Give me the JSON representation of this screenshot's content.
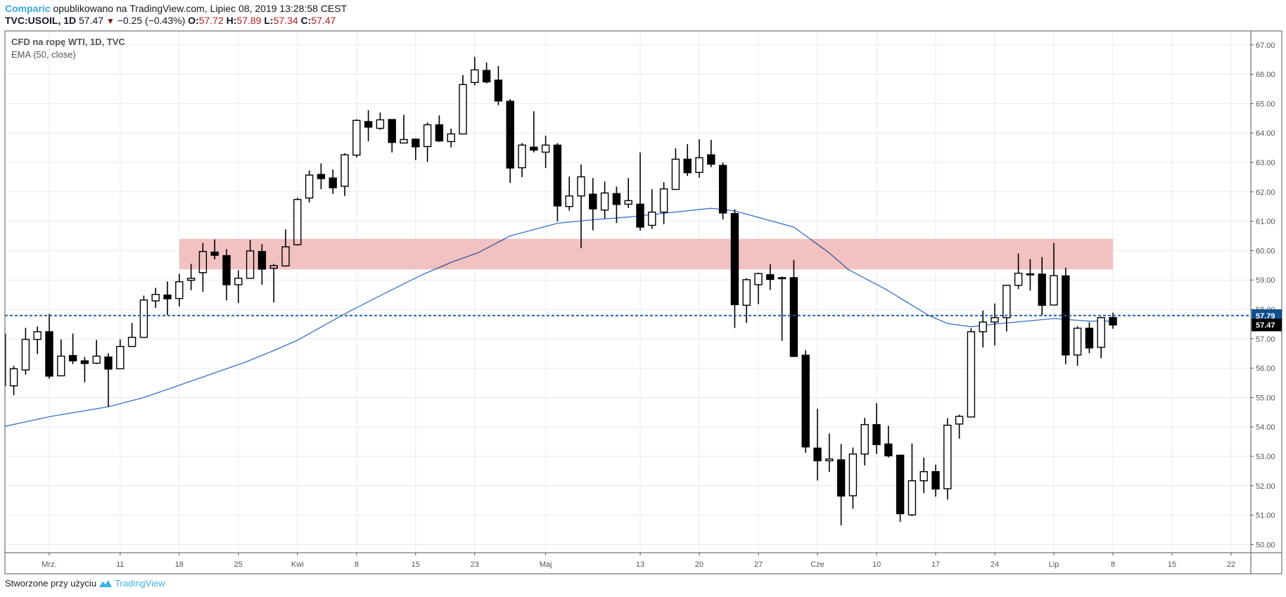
{
  "header": {
    "author": "Comparic",
    "published_text": "opublikowano na TradingView.com, Lipiec 08, 2019 13:28:58 CEST",
    "symbol": "TVC:USOIL, 1D",
    "last_price": "57.47",
    "change": "−0.25 (−0.43%)",
    "o_label": "O:",
    "o_value": "57.72",
    "h_label": "H:",
    "h_value": "57.89",
    "l_label": "L:",
    "l_value": "57.34",
    "c_label": "C:",
    "c_value": "57.47",
    "change_direction_icon": "down-triangle-icon"
  },
  "legend": {
    "series_title": "CFD na ropę WTI, 1D, TVC",
    "indicator": "EMA (50, close)"
  },
  "footer": {
    "text": "Stworzone przy użyciu",
    "brand": "TradingView"
  },
  "colors": {
    "bull_fill": "#ffffff",
    "bear_fill": "#000000",
    "ema": "#3a6fc4",
    "dashed_line": "#1f5ea8",
    "current_price_label": "#0f4f8f",
    "last_price_label": "#000000",
    "zone": "#f2c1c1",
    "grid": "#e3eaf1"
  },
  "chart_data": {
    "type": "candlestick",
    "title": "CFD na ropę WTI, 1D, TVC",
    "ylim": [
      50,
      67
    ],
    "y_ticks": [
      "67.00",
      "66.00",
      "65.00",
      "64.00",
      "63.00",
      "62.00",
      "61.00",
      "60.00",
      "59.00",
      "58.00",
      "57.00",
      "56.00",
      "55.00",
      "54.00",
      "53.00",
      "52.00",
      "51.00",
      "50.00"
    ],
    "x_ticks": [
      {
        "label": "Mrz.",
        "bar": 0
      },
      {
        "label": "11",
        "bar": 6
      },
      {
        "label": "18",
        "bar": 11
      },
      {
        "label": "25",
        "bar": 16
      },
      {
        "label": "Kwi",
        "bar": 21
      },
      {
        "label": "8",
        "bar": 26
      },
      {
        "label": "15",
        "bar": 31
      },
      {
        "label": "23",
        "bar": 36
      },
      {
        "label": "Maj",
        "bar": 42
      },
      {
        "label": "13",
        "bar": 50
      },
      {
        "label": "20",
        "bar": 55
      },
      {
        "label": "27",
        "bar": 60
      },
      {
        "label": "Cze",
        "bar": 65
      },
      {
        "label": "10",
        "bar": 70
      },
      {
        "label": "17",
        "bar": 75
      },
      {
        "label": "24",
        "bar": 80
      },
      {
        "label": "Lip",
        "bar": 85
      },
      {
        "label": "8",
        "bar": 90
      },
      {
        "label": "15",
        "bar": 95
      },
      {
        "label": "22",
        "bar": 100
      }
    ],
    "first_bar": -4,
    "ohlc": [
      [
        57.16,
        57.3,
        55.3,
        55.4
      ],
      [
        55.4,
        56.08,
        55.08,
        55.98
      ],
      [
        55.94,
        57.37,
        55.78,
        56.98
      ],
      [
        56.98,
        57.42,
        56.48,
        57.24
      ],
      [
        57.24,
        57.85,
        55.64,
        55.73
      ],
      [
        55.74,
        56.98,
        55.73,
        56.41
      ],
      [
        56.43,
        57.18,
        56.14,
        56.25
      ],
      [
        56.25,
        56.38,
        55.52,
        56.16
      ],
      [
        56.17,
        56.96,
        56.14,
        56.41
      ],
      [
        56.38,
        56.51,
        54.69,
        55.97
      ],
      [
        55.98,
        56.98,
        55.97,
        56.74
      ],
      [
        56.74,
        57.54,
        56.73,
        57.05
      ],
      [
        57.05,
        58.47,
        57.04,
        58.32
      ],
      [
        58.29,
        58.73,
        58.05,
        58.51
      ],
      [
        58.49,
        58.95,
        57.81,
        58.36
      ],
      [
        58.37,
        59.21,
        58.1,
        58.94
      ],
      [
        58.99,
        59.55,
        58.65,
        59.06
      ],
      [
        59.25,
        60.26,
        58.6,
        59.97
      ],
      [
        59.95,
        60.38,
        59.7,
        59.84
      ],
      [
        59.83,
        60.05,
        58.31,
        58.84
      ],
      [
        58.84,
        59.33,
        58.22,
        59.06
      ],
      [
        59.06,
        60.36,
        59.05,
        59.99
      ],
      [
        59.97,
        60.22,
        58.84,
        59.37
      ],
      [
        59.4,
        59.55,
        58.24,
        59.49
      ],
      [
        59.48,
        60.72,
        59.46,
        60.13
      ],
      [
        60.2,
        61.8,
        60.17,
        61.74
      ],
      [
        61.79,
        62.73,
        61.64,
        62.57
      ],
      [
        62.59,
        62.97,
        62.09,
        62.45
      ],
      [
        62.47,
        62.76,
        61.93,
        62.14
      ],
      [
        62.19,
        63.31,
        61.86,
        63.26
      ],
      [
        63.25,
        64.47,
        63.17,
        64.43
      ],
      [
        64.39,
        64.78,
        63.72,
        64.2
      ],
      [
        64.16,
        64.7,
        64.11,
        64.45
      ],
      [
        64.46,
        64.47,
        63.34,
        63.68
      ],
      [
        63.66,
        64.62,
        63.65,
        63.78
      ],
      [
        63.79,
        63.82,
        63.08,
        63.53
      ],
      [
        63.54,
        64.36,
        63.02,
        64.28
      ],
      [
        64.28,
        64.6,
        63.7,
        63.73
      ],
      [
        63.71,
        64.15,
        63.51,
        63.97
      ],
      [
        63.97,
        65.97,
        63.96,
        65.65
      ],
      [
        65.72,
        66.59,
        65.62,
        66.15
      ],
      [
        66.13,
        66.4,
        65.69,
        65.74
      ],
      [
        65.8,
        66.28,
        64.95,
        65.09
      ],
      [
        65.08,
        65.15,
        62.3,
        62.81
      ],
      [
        62.82,
        63.66,
        62.5,
        63.59
      ],
      [
        63.52,
        64.74,
        63.34,
        63.42
      ],
      [
        63.35,
        63.91,
        62.81,
        63.59
      ],
      [
        63.59,
        63.66,
        60.99,
        61.52
      ],
      [
        61.5,
        62.52,
        61.36,
        61.86
      ],
      [
        61.86,
        62.93,
        60.08,
        62.51
      ],
      [
        61.92,
        62.47,
        60.69,
        61.42
      ],
      [
        61.38,
        62.35,
        61.09,
        61.96
      ],
      [
        61.94,
        62.18,
        60.94,
        61.57
      ],
      [
        61.58,
        62.47,
        61.45,
        61.7
      ],
      [
        61.58,
        63.34,
        60.68,
        60.8
      ],
      [
        60.86,
        62.09,
        60.74,
        61.31
      ],
      [
        61.31,
        62.33,
        60.9,
        62.1
      ],
      [
        62.08,
        63.48,
        62.07,
        63.11
      ],
      [
        63.11,
        63.62,
        62.54,
        62.65
      ],
      [
        62.66,
        63.79,
        62.48,
        63.16
      ],
      [
        63.26,
        63.77,
        62.84,
        62.94
      ],
      [
        62.9,
        63.0,
        61.06,
        61.28
      ],
      [
        61.26,
        61.4,
        57.37,
        58.16
      ],
      [
        58.14,
        59.06,
        57.54,
        59.01
      ],
      [
        58.84,
        59.25,
        58.18,
        59.22
      ],
      [
        59.18,
        59.54,
        58.66,
        59.02
      ],
      [
        59.08,
        59.12,
        56.93,
        59.07
      ],
      [
        59.08,
        59.68,
        56.4,
        56.4
      ],
      [
        56.44,
        56.61,
        53.12,
        53.32
      ],
      [
        53.28,
        54.62,
        52.18,
        52.85
      ],
      [
        52.85,
        53.78,
        52.47,
        52.91
      ],
      [
        52.88,
        53.42,
        50.65,
        51.65
      ],
      [
        51.66,
        53.3,
        51.22,
        53.08
      ],
      [
        53.08,
        54.31,
        52.69,
        54.08
      ],
      [
        54.08,
        54.81,
        53.08,
        53.4
      ],
      [
        53.42,
        54.04,
        52.96,
        53.02
      ],
      [
        53.04,
        53.04,
        50.77,
        51.05
      ],
      [
        51.01,
        53.44,
        50.97,
        52.17
      ],
      [
        52.17,
        52.96,
        51.75,
        52.48
      ],
      [
        52.48,
        52.72,
        51.63,
        51.89
      ],
      [
        51.9,
        54.3,
        51.53,
        54.06
      ],
      [
        54.1,
        54.42,
        53.6,
        54.36
      ],
      [
        54.34,
        57.36,
        54.33,
        57.24
      ],
      [
        57.24,
        57.96,
        56.7,
        57.57
      ],
      [
        57.57,
        58.2,
        56.77,
        57.72
      ],
      [
        57.72,
        58.83,
        57.25,
        58.82
      ],
      [
        58.82,
        59.9,
        58.69,
        59.23
      ],
      [
        59.21,
        59.71,
        58.64,
        59.2
      ],
      [
        59.2,
        59.78,
        57.8,
        58.14
      ],
      [
        58.15,
        60.26,
        58.14,
        59.15
      ],
      [
        59.14,
        59.42,
        56.13,
        56.45
      ],
      [
        56.45,
        57.43,
        56.08,
        57.36
      ],
      [
        57.36,
        57.56,
        56.51,
        56.69
      ],
      [
        56.71,
        57.75,
        56.34,
        57.72
      ],
      [
        57.72,
        57.89,
        57.34,
        57.47
      ]
    ],
    "ema50": [
      [
        -4,
        54.0
      ],
      [
        0,
        54.35
      ],
      [
        5,
        54.69
      ],
      [
        8,
        55.0
      ],
      [
        12,
        55.56
      ],
      [
        16.7,
        56.22
      ],
      [
        19,
        56.6
      ],
      [
        21,
        56.95
      ],
      [
        25,
        57.85
      ],
      [
        28,
        58.47
      ],
      [
        31.5,
        59.17
      ],
      [
        34,
        59.6
      ],
      [
        36.3,
        59.93
      ],
      [
        39,
        60.5
      ],
      [
        43,
        60.93
      ],
      [
        46,
        61.05
      ],
      [
        49,
        61.14
      ],
      [
        56,
        61.44
      ],
      [
        58,
        61.35
      ],
      [
        61,
        61.02
      ],
      [
        63,
        60.8
      ],
      [
        66,
        59.92
      ],
      [
        67.6,
        59.36
      ],
      [
        70.8,
        58.68
      ],
      [
        74.4,
        57.8
      ],
      [
        76,
        57.52
      ],
      [
        78,
        57.41
      ],
      [
        80,
        57.5
      ],
      [
        85,
        57.69
      ],
      [
        86,
        57.66
      ],
      [
        88,
        57.6
      ],
      [
        90,
        57.6
      ]
    ],
    "zone": {
      "from_bar": 11,
      "to_bar": 90,
      "low": 59.36,
      "high": 60.4
    },
    "horizontal_line": {
      "price": 57.79,
      "label": "57.79",
      "style": "dashed"
    },
    "last_price_label": "57.47"
  }
}
